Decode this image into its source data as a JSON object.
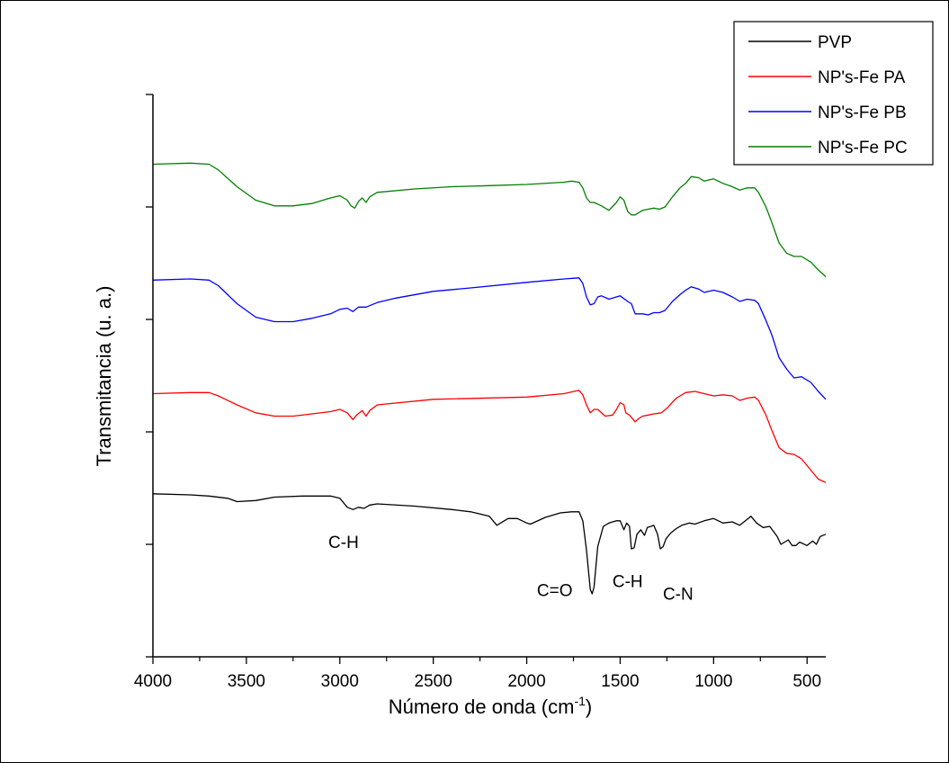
{
  "chart_data": {
    "type": "line",
    "xlabel": "Número de onda (cm",
    "xlabel_sup": "-1",
    "xlabel_suffix": ")",
    "ylabel": "Transmitancia (u. a.)",
    "xlim": [
      4000,
      400
    ],
    "x_reversed": true,
    "x_ticks": [
      4000,
      3500,
      3000,
      2500,
      2000,
      1500,
      1000,
      500
    ],
    "x_tick_labels": [
      "4000",
      "3500",
      "3000",
      "2500",
      "2000",
      "1500",
      "1000",
      "500"
    ],
    "ylim": [
      0,
      5
    ],
    "y_tick_labels": "none",
    "legend_position": "top-right",
    "series": [
      {
        "name": "PVP",
        "color": "#000000",
        "points": [
          [
            4000,
            1.45
          ],
          [
            3800,
            1.44
          ],
          [
            3700,
            1.43
          ],
          [
            3600,
            1.41
          ],
          [
            3550,
            1.38
          ],
          [
            3450,
            1.39
          ],
          [
            3350,
            1.42
          ],
          [
            3200,
            1.43
          ],
          [
            3050,
            1.43
          ],
          [
            3000,
            1.41
          ],
          [
            2960,
            1.33
          ],
          [
            2930,
            1.31
          ],
          [
            2900,
            1.33
          ],
          [
            2870,
            1.32
          ],
          [
            2840,
            1.35
          ],
          [
            2800,
            1.36
          ],
          [
            2600,
            1.34
          ],
          [
            2400,
            1.31
          ],
          [
            2300,
            1.29
          ],
          [
            2200,
            1.25
          ],
          [
            2160,
            1.17
          ],
          [
            2140,
            1.19
          ],
          [
            2100,
            1.23
          ],
          [
            2050,
            1.23
          ],
          [
            2000,
            1.19
          ],
          [
            1980,
            1.18
          ],
          [
            1900,
            1.24
          ],
          [
            1820,
            1.28
          ],
          [
            1760,
            1.29
          ],
          [
            1720,
            1.29
          ],
          [
            1700,
            1.21
          ],
          [
            1680,
            0.95
          ],
          [
            1660,
            0.6
          ],
          [
            1650,
            0.56
          ],
          [
            1640,
            0.62
          ],
          [
            1620,
            0.98
          ],
          [
            1590,
            1.16
          ],
          [
            1560,
            1.19
          ],
          [
            1520,
            1.21
          ],
          [
            1500,
            1.21
          ],
          [
            1480,
            1.13
          ],
          [
            1465,
            1.19
          ],
          [
            1450,
            1.16
          ],
          [
            1440,
            0.96
          ],
          [
            1425,
            0.97
          ],
          [
            1410,
            1.09
          ],
          [
            1390,
            1.13
          ],
          [
            1370,
            1.08
          ],
          [
            1355,
            1.15
          ],
          [
            1335,
            1.16
          ],
          [
            1320,
            1.17
          ],
          [
            1300,
            1.09
          ],
          [
            1285,
            0.96
          ],
          [
            1270,
            0.98
          ],
          [
            1255,
            1.05
          ],
          [
            1230,
            1.1
          ],
          [
            1200,
            1.14
          ],
          [
            1170,
            1.17
          ],
          [
            1130,
            1.19
          ],
          [
            1100,
            1.18
          ],
          [
            1050,
            1.21
          ],
          [
            1000,
            1.23
          ],
          [
            950,
            1.19
          ],
          [
            900,
            1.2
          ],
          [
            860,
            1.17
          ],
          [
            830,
            1.21
          ],
          [
            800,
            1.25
          ],
          [
            770,
            1.19
          ],
          [
            735,
            1.15
          ],
          [
            700,
            1.16
          ],
          [
            660,
            1.07
          ],
          [
            640,
            1.0
          ],
          [
            600,
            1.04
          ],
          [
            580,
            0.99
          ],
          [
            560,
            0.99
          ],
          [
            540,
            1.02
          ],
          [
            500,
            0.99
          ],
          [
            470,
            1.03
          ],
          [
            450,
            1.0
          ],
          [
            430,
            1.07
          ],
          [
            400,
            1.09
          ]
        ]
      },
      {
        "name": "NP's-Fe PA",
        "color": "#ff0000",
        "points": [
          [
            4000,
            2.34
          ],
          [
            3800,
            2.35
          ],
          [
            3700,
            2.35
          ],
          [
            3650,
            2.32
          ],
          [
            3550,
            2.24
          ],
          [
            3450,
            2.17
          ],
          [
            3350,
            2.14
          ],
          [
            3250,
            2.14
          ],
          [
            3150,
            2.16
          ],
          [
            3050,
            2.18
          ],
          [
            3000,
            2.2
          ],
          [
            2960,
            2.17
          ],
          [
            2930,
            2.11
          ],
          [
            2910,
            2.15
          ],
          [
            2880,
            2.19
          ],
          [
            2860,
            2.14
          ],
          [
            2840,
            2.19
          ],
          [
            2800,
            2.24
          ],
          [
            2500,
            2.29
          ],
          [
            2000,
            2.31
          ],
          [
            1800,
            2.34
          ],
          [
            1720,
            2.37
          ],
          [
            1700,
            2.33
          ],
          [
            1680,
            2.24
          ],
          [
            1660,
            2.17
          ],
          [
            1640,
            2.2
          ],
          [
            1620,
            2.2
          ],
          [
            1580,
            2.14
          ],
          [
            1540,
            2.15
          ],
          [
            1520,
            2.2
          ],
          [
            1500,
            2.26
          ],
          [
            1480,
            2.24
          ],
          [
            1470,
            2.17
          ],
          [
            1450,
            2.15
          ],
          [
            1420,
            2.09
          ],
          [
            1400,
            2.12
          ],
          [
            1380,
            2.14
          ],
          [
            1350,
            2.15
          ],
          [
            1320,
            2.16
          ],
          [
            1280,
            2.17
          ],
          [
            1250,
            2.21
          ],
          [
            1200,
            2.3
          ],
          [
            1150,
            2.35
          ],
          [
            1100,
            2.36
          ],
          [
            1050,
            2.34
          ],
          [
            1000,
            2.32
          ],
          [
            950,
            2.33
          ],
          [
            900,
            2.32
          ],
          [
            860,
            2.28
          ],
          [
            820,
            2.3
          ],
          [
            780,
            2.31
          ],
          [
            760,
            2.28
          ],
          [
            720,
            2.15
          ],
          [
            690,
            2.02
          ],
          [
            650,
            1.86
          ],
          [
            610,
            1.81
          ],
          [
            570,
            1.8
          ],
          [
            530,
            1.76
          ],
          [
            480,
            1.66
          ],
          [
            440,
            1.58
          ],
          [
            400,
            1.55
          ]
        ]
      },
      {
        "name": "NP's-Fe PB",
        "color": "#0000ff",
        "points": [
          [
            4000,
            3.35
          ],
          [
            3800,
            3.36
          ],
          [
            3700,
            3.35
          ],
          [
            3650,
            3.3
          ],
          [
            3550,
            3.14
          ],
          [
            3450,
            3.02
          ],
          [
            3350,
            2.98
          ],
          [
            3250,
            2.98
          ],
          [
            3150,
            3.01
          ],
          [
            3050,
            3.05
          ],
          [
            3000,
            3.09
          ],
          [
            2960,
            3.1
          ],
          [
            2930,
            3.07
          ],
          [
            2900,
            3.11
          ],
          [
            2860,
            3.11
          ],
          [
            2800,
            3.15
          ],
          [
            2700,
            3.19
          ],
          [
            2500,
            3.25
          ],
          [
            2300,
            3.28
          ],
          [
            2000,
            3.33
          ],
          [
            1800,
            3.36
          ],
          [
            1720,
            3.37
          ],
          [
            1700,
            3.32
          ],
          [
            1680,
            3.2
          ],
          [
            1660,
            3.13
          ],
          [
            1640,
            3.14
          ],
          [
            1620,
            3.2
          ],
          [
            1600,
            3.21
          ],
          [
            1560,
            3.18
          ],
          [
            1520,
            3.2
          ],
          [
            1500,
            3.21
          ],
          [
            1460,
            3.16
          ],
          [
            1440,
            3.14
          ],
          [
            1420,
            3.05
          ],
          [
            1400,
            3.05
          ],
          [
            1380,
            3.05
          ],
          [
            1350,
            3.04
          ],
          [
            1320,
            3.06
          ],
          [
            1290,
            3.06
          ],
          [
            1260,
            3.08
          ],
          [
            1220,
            3.16
          ],
          [
            1180,
            3.22
          ],
          [
            1150,
            3.26
          ],
          [
            1120,
            3.29
          ],
          [
            1080,
            3.27
          ],
          [
            1050,
            3.24
          ],
          [
            1000,
            3.26
          ],
          [
            950,
            3.24
          ],
          [
            900,
            3.2
          ],
          [
            860,
            3.16
          ],
          [
            820,
            3.18
          ],
          [
            780,
            3.17
          ],
          [
            760,
            3.14
          ],
          [
            720,
            2.99
          ],
          [
            690,
            2.87
          ],
          [
            650,
            2.66
          ],
          [
            610,
            2.56
          ],
          [
            570,
            2.48
          ],
          [
            530,
            2.49
          ],
          [
            480,
            2.44
          ],
          [
            440,
            2.36
          ],
          [
            400,
            2.29
          ]
        ]
      },
      {
        "name": "NP's-Fe PC",
        "color": "#008000",
        "points": [
          [
            4000,
            4.38
          ],
          [
            3800,
            4.39
          ],
          [
            3700,
            4.38
          ],
          [
            3650,
            4.33
          ],
          [
            3550,
            4.18
          ],
          [
            3450,
            4.06
          ],
          [
            3350,
            4.01
          ],
          [
            3250,
            4.01
          ],
          [
            3150,
            4.03
          ],
          [
            3050,
            4.08
          ],
          [
            3000,
            4.1
          ],
          [
            2960,
            4.06
          ],
          [
            2940,
            4.01
          ],
          [
            2920,
            3.99
          ],
          [
            2900,
            4.05
          ],
          [
            2880,
            4.08
          ],
          [
            2860,
            4.04
          ],
          [
            2840,
            4.09
          ],
          [
            2800,
            4.13
          ],
          [
            2600,
            4.16
          ],
          [
            2400,
            4.18
          ],
          [
            2200,
            4.19
          ],
          [
            2000,
            4.2
          ],
          [
            1800,
            4.22
          ],
          [
            1760,
            4.23
          ],
          [
            1720,
            4.22
          ],
          [
            1700,
            4.17
          ],
          [
            1680,
            4.08
          ],
          [
            1660,
            4.04
          ],
          [
            1640,
            4.04
          ],
          [
            1600,
            4.01
          ],
          [
            1560,
            3.97
          ],
          [
            1520,
            4.04
          ],
          [
            1500,
            4.09
          ],
          [
            1480,
            4.06
          ],
          [
            1460,
            3.96
          ],
          [
            1440,
            3.93
          ],
          [
            1420,
            3.93
          ],
          [
            1400,
            3.95
          ],
          [
            1380,
            3.97
          ],
          [
            1350,
            3.98
          ],
          [
            1320,
            3.99
          ],
          [
            1290,
            3.98
          ],
          [
            1260,
            4.0
          ],
          [
            1220,
            4.09
          ],
          [
            1180,
            4.17
          ],
          [
            1150,
            4.21
          ],
          [
            1120,
            4.27
          ],
          [
            1080,
            4.26
          ],
          [
            1050,
            4.23
          ],
          [
            1000,
            4.25
          ],
          [
            950,
            4.21
          ],
          [
            900,
            4.18
          ],
          [
            860,
            4.15
          ],
          [
            820,
            4.17
          ],
          [
            780,
            4.17
          ],
          [
            760,
            4.13
          ],
          [
            720,
            4.0
          ],
          [
            690,
            3.87
          ],
          [
            650,
            3.68
          ],
          [
            610,
            3.59
          ],
          [
            570,
            3.56
          ],
          [
            530,
            3.56
          ],
          [
            480,
            3.51
          ],
          [
            440,
            3.44
          ],
          [
            400,
            3.38
          ]
        ]
      }
    ],
    "annotations": [
      {
        "text": "C-H",
        "x": 2980,
        "y": 0.97
      },
      {
        "text": "C=O",
        "x": 1850,
        "y": 0.54
      },
      {
        "text": "C-H",
        "x": 1460,
        "y": 0.62
      },
      {
        "text": "C-N",
        "x": 1190,
        "y": 0.51
      }
    ]
  }
}
